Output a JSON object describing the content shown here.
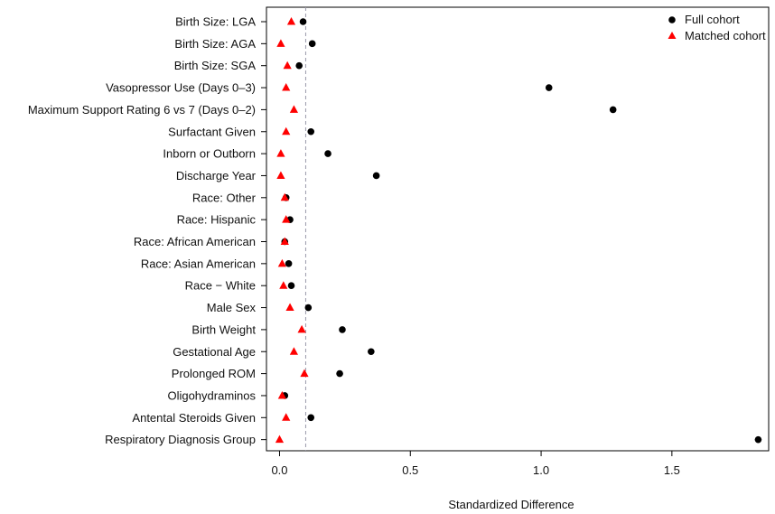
{
  "chart_data": {
    "type": "scatter",
    "xlabel": "Standardized Difference",
    "xlim": [
      -0.05,
      1.87
    ],
    "xticks": [
      0.0,
      0.5,
      1.0,
      1.5
    ],
    "xtick_labels": [
      "0.0",
      "0.5",
      "1.0",
      "1.5"
    ],
    "reference_line": {
      "x": 0.1,
      "style": "dashed",
      "color": "#9a9aaa"
    },
    "categories": [
      "Birth Size: LGA",
      "Birth Size: AGA",
      "Birth Size: SGA",
      "Vasopressor Use (Days 0–3)",
      "Maximum Support Rating 6 vs 7 (Days 0–2)",
      "Surfactant Given",
      "Inborn or Outborn",
      "Discharge Year",
      "Race: Other",
      "Race: Hispanic",
      "Race: African American",
      "Race: Asian American",
      "Race − White",
      "Male Sex",
      "Birth Weight",
      "Gestational Age",
      "Prolonged ROM",
      "Oligohydraminos",
      "Antental Steroids Given",
      "Respiratory Diagnosis Group"
    ],
    "series": [
      {
        "name": "Full cohort",
        "marker": "circle",
        "color": "#000000",
        "values": [
          0.09,
          0.125,
          0.075,
          1.03,
          1.275,
          0.12,
          0.185,
          0.37,
          0.025,
          0.04,
          0.02,
          0.035,
          0.045,
          0.11,
          0.24,
          0.35,
          0.23,
          0.02,
          0.12,
          1.83
        ]
      },
      {
        "name": "Matched cohort",
        "marker": "triangle",
        "color": "#ff0000",
        "values": [
          0.045,
          0.005,
          0.03,
          0.025,
          0.055,
          0.025,
          0.005,
          0.005,
          0.02,
          0.025,
          0.02,
          0.01,
          0.015,
          0.04,
          0.085,
          0.055,
          0.095,
          0.01,
          0.025,
          0.0
        ]
      }
    ],
    "legend": {
      "position": "top-right"
    }
  }
}
